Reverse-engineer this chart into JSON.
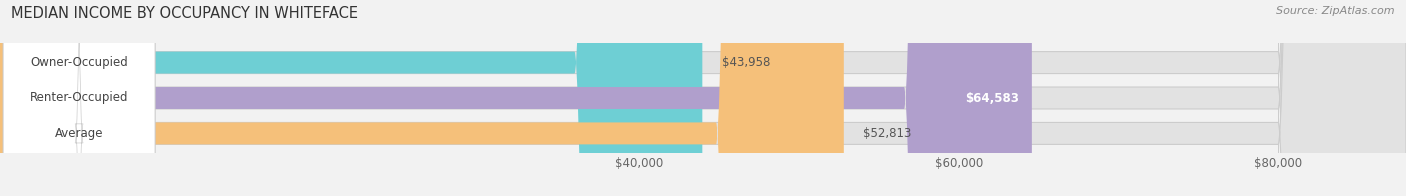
{
  "title": "MEDIAN INCOME BY OCCUPANCY IN WHITEFACE",
  "source": "Source: ZipAtlas.com",
  "categories": [
    "Owner-Occupied",
    "Renter-Occupied",
    "Average"
  ],
  "values": [
    43958,
    64583,
    52813
  ],
  "labels": [
    "$43,958",
    "$64,583",
    "$52,813"
  ],
  "bar_colors": [
    "#6ecfd4",
    "#b09fcc",
    "#f5c07a"
  ],
  "label_inside_colors": [
    "#555555",
    "#ffffff",
    "#555555"
  ],
  "xlim": [
    0,
    88000
  ],
  "xticks": [
    40000,
    60000,
    80000
  ],
  "xtick_labels": [
    "$40,000",
    "$60,000",
    "$80,000"
  ],
  "background_color": "#f2f2f2",
  "bar_bg_color": "#e2e2e2",
  "title_fontsize": 10.5,
  "source_fontsize": 8,
  "label_fontsize": 8.5,
  "category_fontsize": 8.5,
  "tick_fontsize": 8.5,
  "bar_height": 0.62
}
